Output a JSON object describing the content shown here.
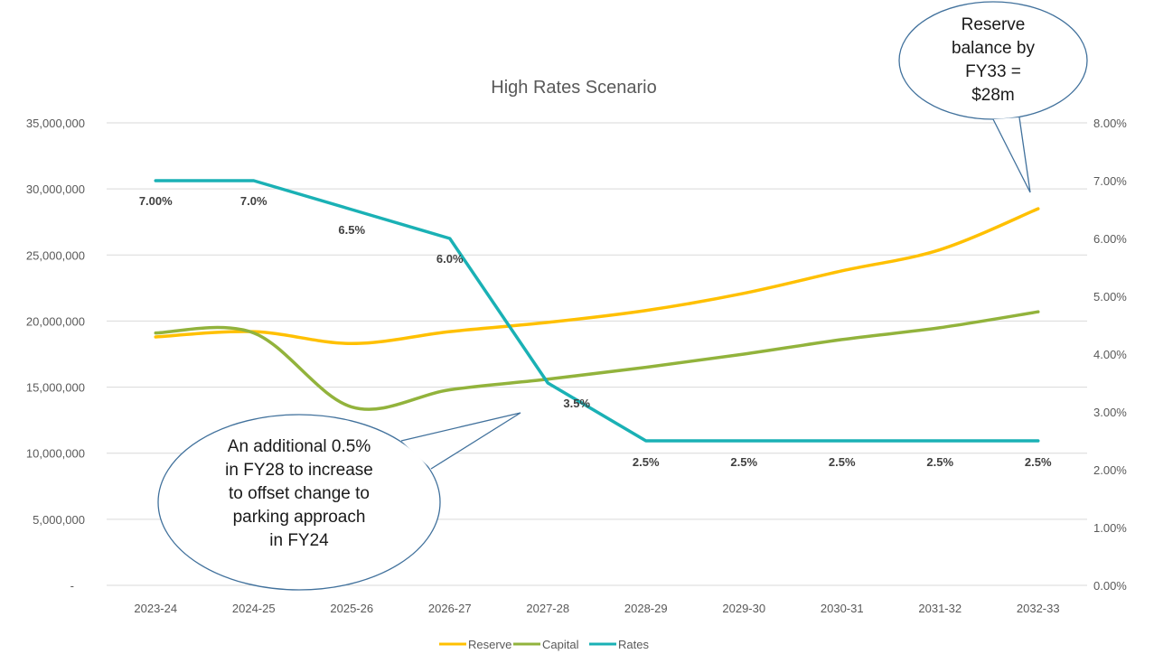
{
  "chart_data": {
    "type": "line",
    "title": "High Rates Scenario",
    "categories": [
      "2023-24",
      "2024-25",
      "2025-26",
      "2026-27",
      "2027-28",
      "2028-29",
      "2029-30",
      "2030-31",
      "2031-32",
      "2032-33"
    ],
    "y_left": {
      "ylim": [
        0,
        35000000
      ],
      "tick_labels": [
        "-",
        "5,000,000",
        "10,000,000",
        "15,000,000",
        "20,000,000",
        "25,000,000",
        "30,000,000",
        "35,000,000"
      ]
    },
    "y_right": {
      "ylim": [
        0,
        0.08
      ],
      "tick_labels": [
        "0.00%",
        "1.00%",
        "2.00%",
        "3.00%",
        "4.00%",
        "5.00%",
        "6.00%",
        "7.00%",
        "8.00%"
      ]
    },
    "series": [
      {
        "name": "Reserve",
        "axis": "left",
        "color": "#FFC000",
        "values": [
          18800000,
          19200000,
          18300000,
          19200000,
          19900000,
          20800000,
          22100000,
          23800000,
          25400000,
          28500000
        ]
      },
      {
        "name": "Capital",
        "axis": "left",
        "color": "#92B33C",
        "values": [
          19100000,
          19100000,
          13500000,
          14800000,
          15600000,
          16500000,
          17500000,
          18600000,
          19500000,
          20700000
        ]
      },
      {
        "name": "Rates",
        "axis": "right",
        "color": "#1AB1B5",
        "values": [
          0.07,
          0.07,
          0.065,
          0.06,
          0.035,
          0.025,
          0.025,
          0.025,
          0.025,
          0.025
        ],
        "data_labels": [
          "7.00%",
          "7.0%",
          "6.5%",
          "6.0%",
          "3.5%",
          "2.5%",
          "2.5%",
          "2.5%",
          "2.5%",
          "2.5%"
        ]
      }
    ],
    "annotations": [
      {
        "lines": [
          "Reserve",
          "balance by",
          "FY33 =",
          "$28m"
        ]
      },
      {
        "lines": [
          "An additional 0.5%",
          "in FY28 to increase",
          "to offset change to",
          "parking approach",
          "in FY24"
        ]
      }
    ],
    "legend": {
      "position": "bottom"
    },
    "grid": true
  }
}
